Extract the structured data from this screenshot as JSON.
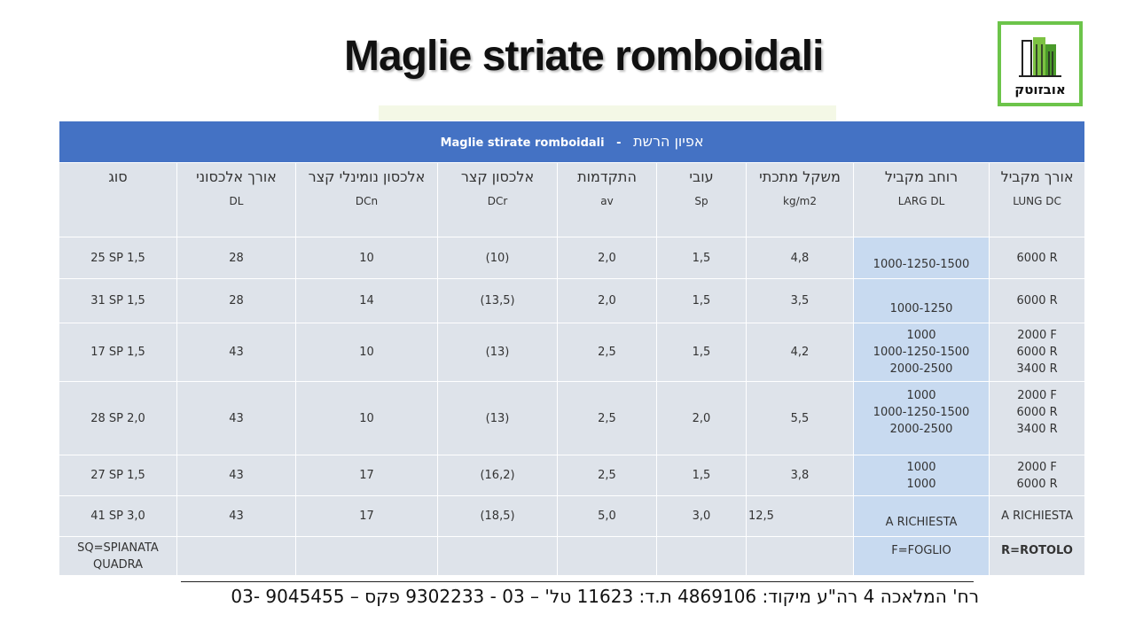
{
  "title": "Maglie striate romboidali",
  "logo": {
    "text": "אובזוטק"
  },
  "table": {
    "header": {
      "latin": "Maglie stirate romboidali",
      "dash": "-",
      "hebrew": "אפיון הרשת"
    },
    "columns": [
      {
        "heb": "סוג",
        "code": ""
      },
      {
        "heb": "אורך אלכסוני",
        "code": "DL"
      },
      {
        "heb": "אלכסון נומינלי קצר",
        "code": "DCn"
      },
      {
        "heb": "אלכסון קצר",
        "code": "DCr"
      },
      {
        "heb": "התקדמות",
        "code": "av"
      },
      {
        "heb": "עובי",
        "code": "Sp"
      },
      {
        "heb": "משקל מתכתי",
        "code": "kg/m2"
      },
      {
        "heb": "רוחב מקביל",
        "code": "LARG DL"
      },
      {
        "heb": "אורך מקביל",
        "code": "LUNG DC"
      }
    ],
    "rows": [
      {
        "type": "25 SP 1,5",
        "dl": "28",
        "dcn": "10",
        "dcr": "(10)",
        "av": "2,0",
        "sp": "1,5",
        "kg": "4,8",
        "larg": [
          "1000-1250-1500"
        ],
        "lung": [
          "6000 R"
        ]
      },
      {
        "type": "31 SP 1,5",
        "dl": "28",
        "dcn": "14",
        "dcr": "(13,5)",
        "av": "2,0",
        "sp": "1,5",
        "kg": "3,5",
        "larg": [
          "1000-1250"
        ],
        "lung": [
          "6000 R"
        ]
      },
      {
        "type": "17 SP 1,5",
        "dl": "43",
        "dcn": "10",
        "dcr": "(13)",
        "av": "2,5",
        "sp": "1,5",
        "kg": "4,2",
        "larg": [
          "1000",
          "1000-1250-1500",
          "2000-2500"
        ],
        "lung": [
          "2000 F",
          "6000 R",
          "3400 R"
        ]
      },
      {
        "type": "28 SP 2,0",
        "dl": "43",
        "dcn": "10",
        "dcr": "(13)",
        "av": "2,5",
        "sp": "2,0",
        "kg": "5,5",
        "larg": [
          "1000",
          "1000-1250-1500",
          "2000-2500"
        ],
        "lung": [
          "2000 F",
          "6000 R",
          "3400 R"
        ]
      },
      {
        "type": "27 SP 1,5",
        "dl": "43",
        "dcn": "17",
        "dcr": "(16,2)",
        "av": "2,5",
        "sp": "1,5",
        "kg": "3,8",
        "larg": [
          "1000",
          "1000"
        ],
        "lung": [
          "2000 F",
          "6000 R"
        ]
      },
      {
        "type": "41 SP 3,0",
        "dl": "43",
        "dcn": "17",
        "dcr": "(18,5)",
        "av": "5,0",
        "sp": "3,0",
        "kg": "12,5",
        "larg": [
          "A RICHIESTA"
        ],
        "lung": [
          "A RICHIESTA"
        ]
      }
    ],
    "legend": {
      "type": [
        "SQ=SPIANATA",
        "QUADRA"
      ],
      "larg": "F=FOGLIO",
      "lung": "R=ROTOLO"
    }
  },
  "footer": "רח' המלאכה 4 רה\"ע מיקוד: 4869106 ת.ד: 11623 טל' – 03 - 9302233 פקס – 9045455 -03",
  "colors": {
    "header_bg": "#4472c4",
    "cell_bg": "#dee3ea",
    "highlight_bg": "#c8daf0",
    "logo_border": "#6cc44a"
  }
}
